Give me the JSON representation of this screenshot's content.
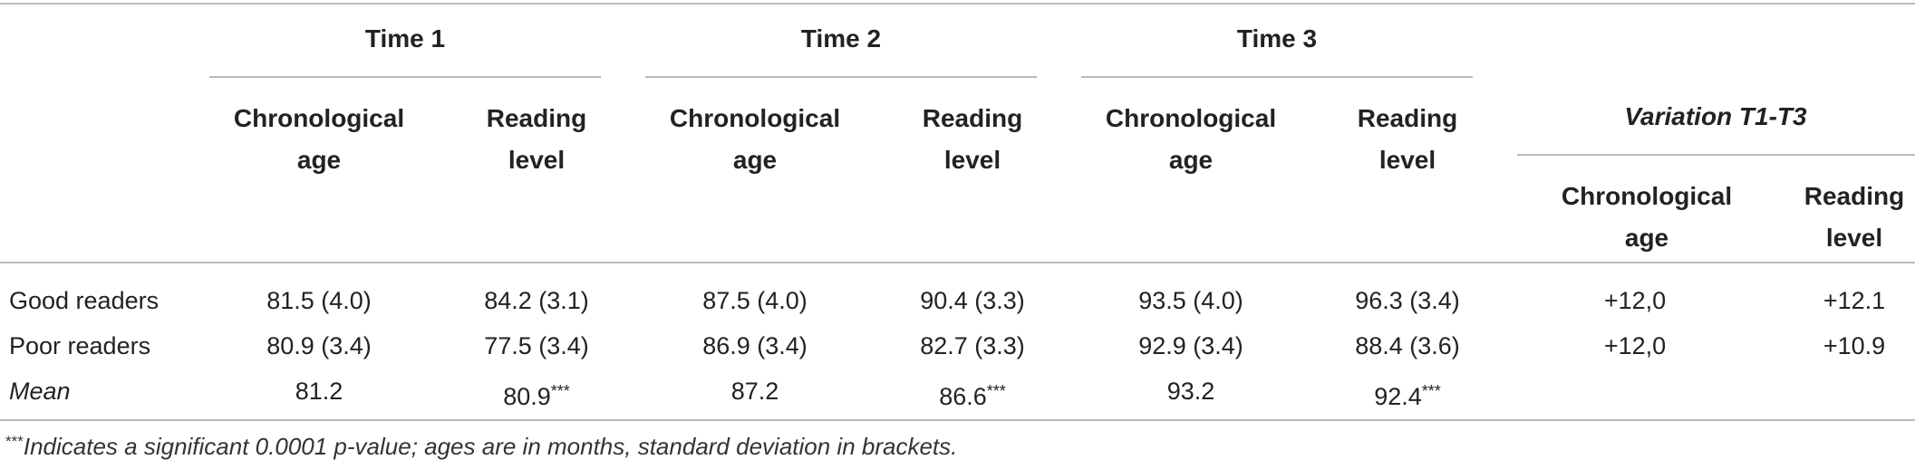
{
  "table": {
    "groups": [
      "Time 1",
      "Time 2",
      "Time 3",
      "Variation T1-T3"
    ],
    "subheaders": {
      "chronological_line1": "Chronological",
      "chronological_line2": "age",
      "reading_line1": "Reading",
      "reading_line2": "level"
    },
    "rows": [
      {
        "label": "Good readers",
        "values": [
          "81.5 (4.0)",
          "84.2 (3.1)",
          "87.5 (4.0)",
          "90.4 (3.3)",
          "93.5 (4.0)",
          "96.3 (3.4)",
          "+12,0",
          "+12.1"
        ]
      },
      {
        "label": "Poor readers",
        "values": [
          "80.9 (3.4)",
          "77.5 (3.4)",
          "86.9 (3.4)",
          "82.7 (3.3)",
          "92.9 (3.4)",
          "88.4 (3.6)",
          "+12,0",
          "+10.9"
        ]
      },
      {
        "label": "Mean",
        "values": [
          "81.2",
          "80.9",
          "87.2",
          "86.6",
          "93.2",
          "92.4",
          "",
          ""
        ],
        "markers": [
          "",
          "***",
          "",
          "***",
          "",
          "***",
          "",
          ""
        ]
      }
    ],
    "footnote_marker": "***",
    "footnote": "Indicates a significant 0.0001 p-value; ages are in months, standard deviation in brackets."
  }
}
